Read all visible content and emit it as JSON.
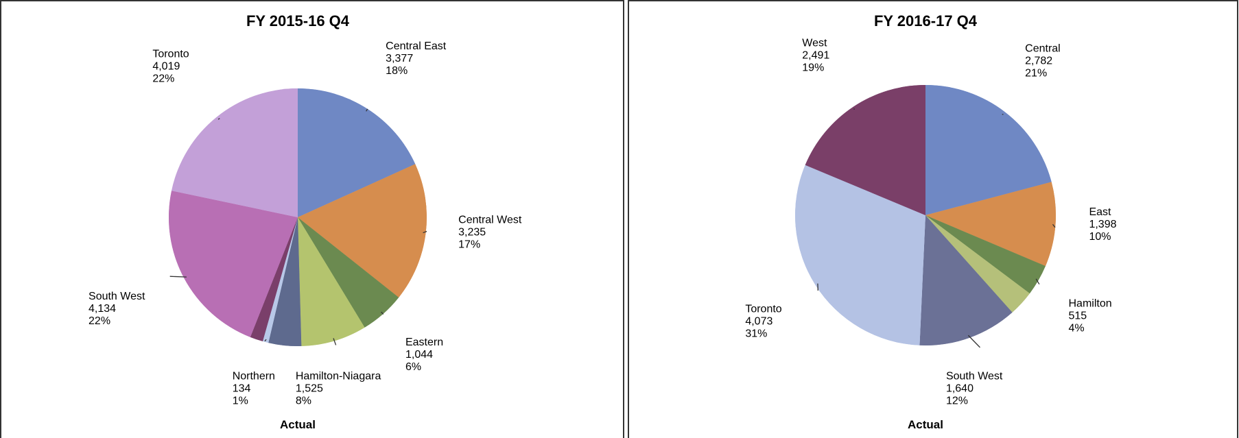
{
  "chart_data": [
    {
      "type": "pie",
      "title": "FY 2015-16 Q4",
      "xlabel": "Actual",
      "categories": [
        "Central East",
        "Central West",
        "Eastern",
        "Hamilton-Niagara",
        null,
        "Northern",
        null,
        "South West",
        "Toronto"
      ],
      "values": [
        3377,
        3235,
        1044,
        1525,
        760,
        134,
        300,
        4134,
        4019
      ],
      "value_labels": [
        "3,377",
        "3,235",
        "1,044",
        "1,525",
        null,
        "134",
        null,
        "4,134",
        "4,019"
      ],
      "percent_labels": [
        "18%",
        "17%",
        "6%",
        "8%",
        null,
        "1%",
        null,
        "22%",
        "22%"
      ],
      "colors": [
        "#6f88c4",
        "#d68d4e",
        "#6b8a50",
        "#b4c46e",
        "#5e6a8e",
        "#b8c8e8",
        "#7a3f6a",
        "#b86fb4",
        "#c3a0d8"
      ]
    },
    {
      "type": "pie",
      "title": "FY 2016-17 Q4",
      "xlabel": "Actual",
      "categories": [
        "Central",
        "East",
        "Hamilton",
        null,
        "South West",
        "Toronto",
        "West"
      ],
      "values": [
        2782,
        1398,
        515,
        420,
        1640,
        4073,
        2491
      ],
      "value_labels": [
        "2,782",
        "1,398",
        "515",
        null,
        "1,640",
        "4,073",
        "2,491"
      ],
      "percent_labels": [
        "21%",
        "10%",
        "4%",
        null,
        "12%",
        "31%",
        "19%"
      ],
      "colors": [
        "#6f88c4",
        "#d68d4e",
        "#6b8a50",
        "#b5c07a",
        "#6b7196",
        "#b4c2e4",
        "#7a3f68"
      ]
    }
  ]
}
